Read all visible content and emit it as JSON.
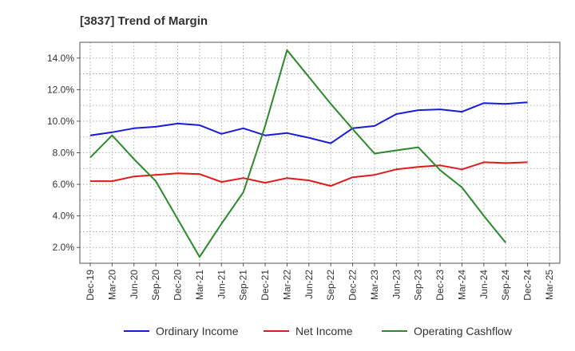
{
  "chart_data": {
    "type": "line",
    "title": "[3837]  Trend of Margin",
    "xlabel": "",
    "ylabel": "",
    "x_ticks": [
      "Dec-19",
      "Mar-20",
      "Jun-20",
      "Sep-20",
      "Dec-20",
      "Mar-21",
      "Jun-21",
      "Sep-21",
      "Dec-21",
      "Mar-22",
      "Jun-22",
      "Sep-22",
      "Dec-22",
      "Mar-23",
      "Jun-23",
      "Sep-23",
      "Dec-23",
      "Mar-24",
      "Jun-24",
      "Sep-24",
      "Dec-24",
      "Mar-25"
    ],
    "y_ticks": [
      "2.0%",
      "4.0%",
      "6.0%",
      "8.0%",
      "10.0%",
      "12.0%",
      "14.0%"
    ],
    "y_tick_values": [
      2,
      4,
      6,
      8,
      10,
      12,
      14
    ],
    "ylim": [
      1.0,
      15.0
    ],
    "grid": true,
    "legend_position": "bottom",
    "series": [
      {
        "name": "Ordinary Income",
        "color": "#1a1adb",
        "values": [
          9.1,
          9.3,
          9.55,
          9.65,
          9.85,
          9.75,
          9.2,
          9.55,
          9.1,
          9.25,
          8.95,
          8.6,
          9.55,
          9.7,
          10.45,
          10.7,
          10.75,
          10.6,
          11.15,
          11.1,
          11.2,
          null
        ]
      },
      {
        "name": "Net Income",
        "color": "#e01a1a",
        "values": [
          6.2,
          6.2,
          6.5,
          6.6,
          6.7,
          6.65,
          6.15,
          6.4,
          6.1,
          6.4,
          6.25,
          5.9,
          6.45,
          6.6,
          6.95,
          7.1,
          7.2,
          6.95,
          7.4,
          7.35,
          7.4,
          null
        ]
      },
      {
        "name": "Operating Cashflow",
        "color": "#2a8a2a",
        "values": [
          7.7,
          9.1,
          7.6,
          6.2,
          3.8,
          1.4,
          3.5,
          5.5,
          9.7,
          14.5,
          12.8,
          11.1,
          9.5,
          7.95,
          8.15,
          8.35,
          6.9,
          5.8,
          4.0,
          2.3,
          null,
          null
        ]
      }
    ]
  }
}
